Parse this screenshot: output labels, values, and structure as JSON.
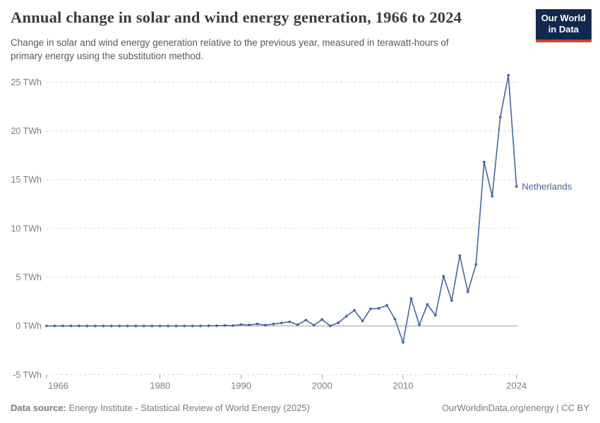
{
  "header": {
    "title": "Annual change in solar and wind energy generation, 1966 to 2024",
    "subtitle": "Change in solar and wind energy generation relative to the previous year, measured in terawatt-hours of primary energy using the substitution method.",
    "logo": {
      "line1": "Our World",
      "line2": "in Data",
      "bg_color": "#12294e",
      "stripe_color": "#d93b33",
      "text_color": "#ffffff"
    }
  },
  "footer": {
    "source_label": "Data source:",
    "source_text": " Energy Institute - Statistical Review of World Energy (2025)",
    "credit": "OurWorldinData.org/energy | CC BY"
  },
  "colors": {
    "series_blue": "#4666a0",
    "gridline": "#d9d9d9",
    "zero_line": "#9a9a9a",
    "tick_text": "#7e7e7e",
    "axis_tick": "#a3a3a3"
  },
  "chart_data": {
    "type": "line",
    "title": "Annual change in solar and wind energy generation, 1966 to 2024",
    "xlabel": "",
    "ylabel": "",
    "unit": "TWh",
    "grid": "horizontal-dashed",
    "legend_position": "line-end-label",
    "xlim": [
      1966,
      2024
    ],
    "ylim": [
      -5,
      26
    ],
    "xticks": [
      1966,
      1980,
      1990,
      2000,
      2010,
      2024
    ],
    "yticks": [
      -5,
      0,
      5,
      10,
      15,
      20,
      25
    ],
    "ytick_suffix": " TWh",
    "series": [
      {
        "name": "Netherlands",
        "color": "#4666a0",
        "x": [
          1966,
          1967,
          1968,
          1969,
          1970,
          1971,
          1972,
          1973,
          1974,
          1975,
          1976,
          1977,
          1978,
          1979,
          1980,
          1981,
          1982,
          1983,
          1984,
          1985,
          1986,
          1987,
          1988,
          1989,
          1990,
          1991,
          1992,
          1993,
          1994,
          1995,
          1996,
          1997,
          1998,
          1999,
          2000,
          2001,
          2002,
          2003,
          2004,
          2005,
          2006,
          2007,
          2008,
          2009,
          2010,
          2011,
          2012,
          2013,
          2014,
          2015,
          2016,
          2017,
          2018,
          2019,
          2020,
          2021,
          2022,
          2023,
          2024
        ],
        "values": [
          0,
          0,
          0,
          0,
          0,
          0,
          0,
          0,
          0,
          0,
          0,
          0,
          0,
          0,
          0,
          0,
          0,
          0,
          0,
          0,
          0.02,
          0.02,
          0.05,
          0.03,
          0.14,
          0.1,
          0.2,
          0.08,
          0.2,
          0.3,
          0.42,
          0.12,
          0.6,
          0.07,
          0.65,
          0.0,
          0.32,
          1.0,
          1.6,
          0.5,
          1.76,
          1.8,
          2.1,
          0.7,
          -1.7,
          2.8,
          0.1,
          2.2,
          1.1,
          5.1,
          2.6,
          7.2,
          3.5,
          6.3,
          16.8,
          13.3,
          21.4,
          25.7,
          14.3
        ]
      }
    ]
  }
}
